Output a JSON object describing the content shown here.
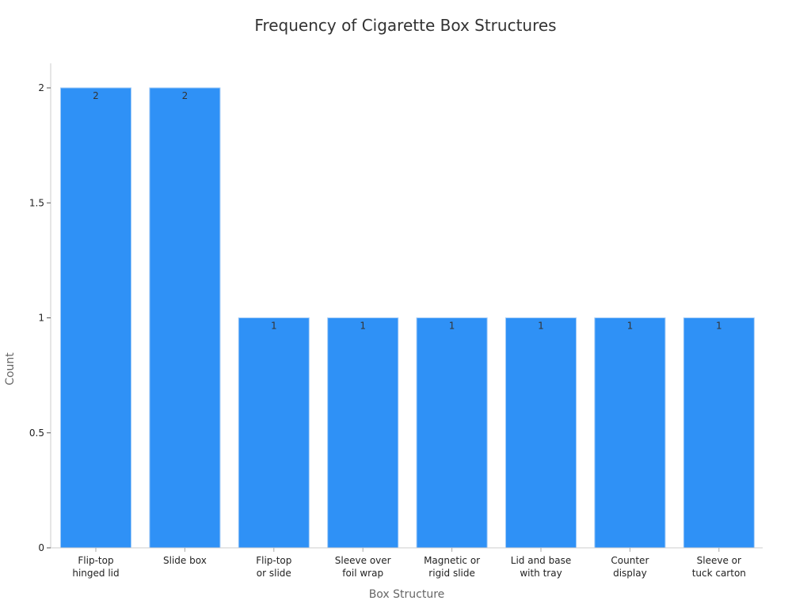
{
  "chart_data": {
    "type": "bar",
    "title": "Frequency of Cigarette Box Structures",
    "xlabel": "Box Structure",
    "ylabel": "Count",
    "categories": [
      [
        "Flip-top",
        "hinged lid"
      ],
      [
        "Slide box"
      ],
      [
        "Flip-top",
        "or slide"
      ],
      [
        "Sleeve over",
        "foil wrap"
      ],
      [
        "Magnetic or",
        "rigid slide"
      ],
      [
        "Lid and base",
        "with tray"
      ],
      [
        "Counter",
        "display"
      ],
      [
        "Sleeve or",
        "tuck carton"
      ]
    ],
    "values": [
      2,
      2,
      1,
      1,
      1,
      1,
      1,
      1
    ],
    "ylim": [
      0,
      2
    ],
    "yticks": [
      0,
      0.5,
      1,
      1.5,
      2
    ],
    "ytick_labels": [
      "0",
      "0.5",
      "1",
      "1.5",
      "2"
    ],
    "grid": false,
    "bar_color": "#2f91f6",
    "bar_edge_color": "#9ec9f7"
  }
}
